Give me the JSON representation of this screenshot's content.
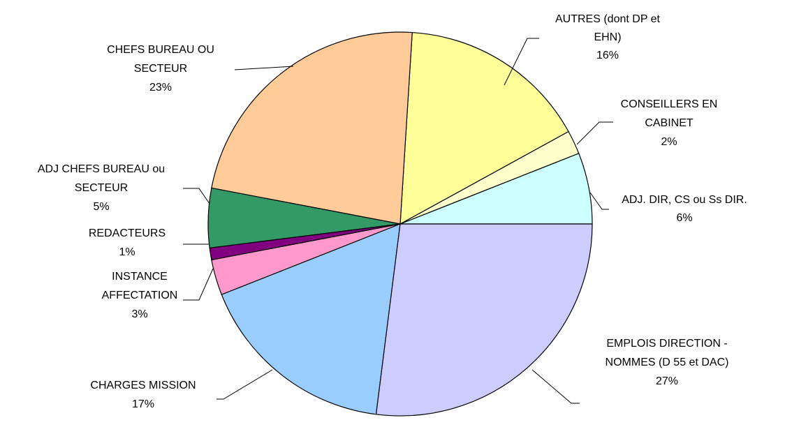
{
  "chart_data": {
    "type": "pie",
    "categories": [
      "ADJ. DIR, CS ou Ss DIR.",
      "CONSEILLERS EN\nCABINET",
      "AUTRES (dont DP et\nEHN)",
      "CHEFS BUREAU OU\nSECTEUR",
      "ADJ CHEFS BUREAU ou\nSECTEUR",
      "REDACTEURS",
      "INSTANCE\nAFFECTATION",
      "CHARGES MISSION",
      "EMPLOIS DIRECTION -\nNOMMES (D 55 et DAC)"
    ],
    "values": [
      6,
      2,
      16,
      23,
      5,
      1,
      3,
      17,
      27
    ],
    "value_labels": [
      "6%",
      "2%",
      "16%",
      "23%",
      "5%",
      "1%",
      "3%",
      "17%",
      "27%"
    ],
    "colors": [
      "#ccffff",
      "#ffffcc",
      "#ffff99",
      "#ffcc99",
      "#339966",
      "#800080",
      "#ff99cc",
      "#99ccff",
      "#ccccff"
    ]
  }
}
